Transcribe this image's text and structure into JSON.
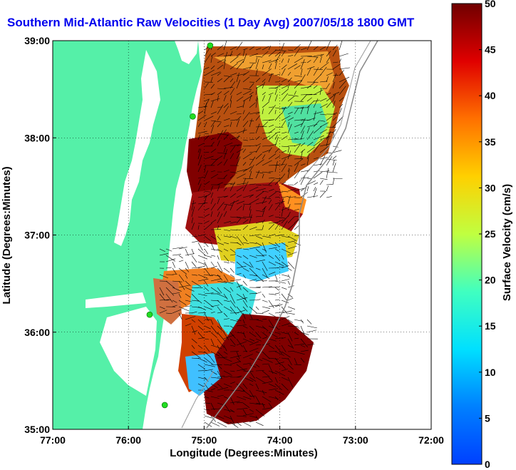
{
  "title": "Southern Mid-Atlantic Raw Velocities (1 Day Avg) 2007/05/18 1800 GMT",
  "x_axis": {
    "label": "Longitude (Degrees:Minutes)",
    "ticks": [
      "77:00",
      "76:00",
      "75:00",
      "74:00",
      "73:00",
      "72:00"
    ],
    "range": [
      -77,
      -72
    ]
  },
  "y_axis": {
    "label": "Latitude (Degrees:Minutes)",
    "ticks": [
      "39:00",
      "38:00",
      "37:00",
      "36:00",
      "35:00"
    ],
    "range": [
      35,
      39
    ]
  },
  "colorbar": {
    "label": "Surface Velocity (cm/s)",
    "ticks": [
      "0",
      "5",
      "10",
      "15",
      "20",
      "25",
      "30",
      "35",
      "40",
      "45",
      "50"
    ],
    "range": [
      0,
      50
    ],
    "colormap": "jet"
  },
  "colors": {
    "land": "#55f0a8",
    "water": "#ffffff",
    "title": "#0000ee",
    "station": "#22dd22",
    "bathymetry": "#888888"
  },
  "stations": [
    {
      "lon": -74.92,
      "lat": 38.95
    },
    {
      "lon": -75.15,
      "lat": 38.22
    },
    {
      "lon": -75.72,
      "lat": 36.18
    },
    {
      "lon": -75.52,
      "lat": 35.25
    }
  ]
}
